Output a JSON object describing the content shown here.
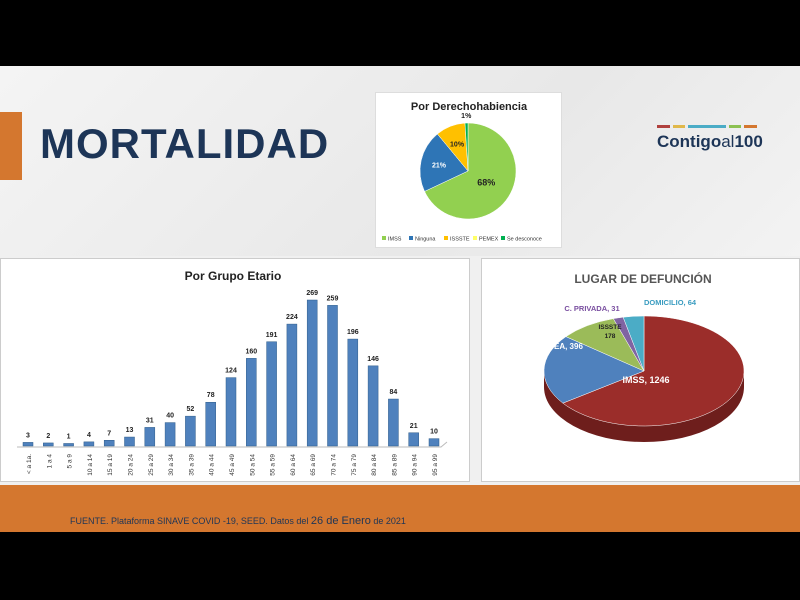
{
  "header": {
    "title": "MORTALIDAD",
    "logo_text": "Contigo al 100",
    "logo_main": "Contigo",
    "logo_al": "al",
    "logo_num": "100"
  },
  "footer": {
    "source_prefix": "FUENTE. Plataforma SINAVE COVID -19, SEED. Datos del ",
    "date_day": "26",
    "date_de1": " de ",
    "date_month": "Enero",
    "date_rest": " de 2021"
  },
  "colors": {
    "accent": "#d4772f",
    "navy": "#1d3557"
  },
  "chart_data": [
    {
      "type": "pie",
      "title": "Por Derechohabiencia",
      "categories": [
        "IMSS",
        "Ninguna",
        "ISSSTE",
        "PEMEX",
        "Se desconoce"
      ],
      "values": [
        68,
        21,
        10,
        0,
        1
      ],
      "labels": [
        "68%",
        "21%",
        "10%",
        "",
        "1%"
      ],
      "colors": [
        "#92d050",
        "#2e75b6",
        "#ffc000",
        "#ffff66",
        "#00b050"
      ],
      "legend": "bottom"
    },
    {
      "type": "bar",
      "title": "Por Grupo Etario",
      "categories": [
        "< a 1a.",
        "1 a 4",
        "5 a 9",
        "10 a 14",
        "15 a 19",
        "20 a 24",
        "25 a 29",
        "30 a 34",
        "35 a 39",
        "40 a 44",
        "45 a 49",
        "50 a 54",
        "55 a 59",
        "60 a 64",
        "65 a 69",
        "70 a 74",
        "75 a 79",
        "80 a 84",
        "85 a 89",
        "90 a 94",
        "95 a 99"
      ],
      "values": [
        3,
        2,
        1,
        4,
        7,
        13,
        31,
        40,
        52,
        78,
        124,
        160,
        191,
        224,
        269,
        259,
        196,
        146,
        84,
        21,
        10
      ],
      "ylim": [
        0,
        269
      ],
      "color": "#4f81bd"
    },
    {
      "type": "pie",
      "title": "LUGAR DE DEFUNCIÓN",
      "categories": [
        "IMSS",
        "ISSEA",
        "ISSSTE",
        "C. PRIVADA",
        "DOMICILIO"
      ],
      "values": [
        1246,
        396,
        178,
        31,
        64
      ],
      "labels": [
        "IMSS, 1246",
        "ISSEA, 396",
        "ISSSTE 178",
        "C. PRIVADA, 31",
        "DOMICILIO, 64"
      ],
      "colors": [
        "#9b2d2a",
        "#4f81bd",
        "#9bbb59",
        "#8064a2",
        "#4bacc6"
      ]
    }
  ]
}
